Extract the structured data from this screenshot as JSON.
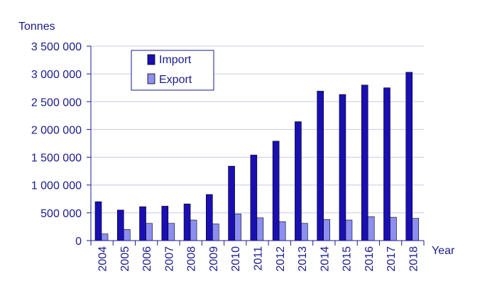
{
  "chart_data": {
    "type": "bar",
    "title": "",
    "ylabel": "Tonnes",
    "xlabel": "Year",
    "categories": [
      "2004",
      "2005",
      "2006",
      "2007",
      "2008",
      "2009",
      "2010",
      "2011",
      "2012",
      "2013",
      "2014",
      "2015",
      "2016",
      "2017",
      "2018"
    ],
    "series": [
      {
        "name": "Import",
        "color": "#1a0fb3",
        "values": [
          700000,
          550000,
          610000,
          620000,
          660000,
          830000,
          1340000,
          1540000,
          1790000,
          2140000,
          2690000,
          2630000,
          2800000,
          2750000,
          3030000
        ]
      },
      {
        "name": "Export",
        "color": "#8c8ef2",
        "values": [
          120000,
          200000,
          310000,
          310000,
          370000,
          300000,
          480000,
          410000,
          340000,
          310000,
          380000,
          370000,
          430000,
          420000,
          400000
        ]
      }
    ],
    "ylim": [
      0,
      3500000
    ],
    "yticks": [
      0,
      500000,
      1000000,
      1500000,
      2000000,
      2500000,
      3000000,
      3500000
    ],
    "ytick_labels": [
      "0",
      "500 000",
      "1 000 000",
      "1 500 000",
      "2 000 000",
      "2 500 000",
      "3 000 000",
      "3 500 000"
    ],
    "grid": true,
    "legend_position": "top-left"
  },
  "colors": {
    "text": "#1a1a8c",
    "grid": "#c8c8ea",
    "axis": "#1a1a8c"
  }
}
